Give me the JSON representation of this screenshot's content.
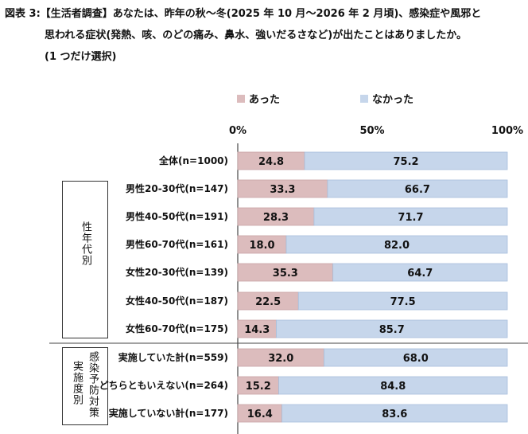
{
  "title": {
    "line1": "図表 3:【生活者調査】あなたは、昨年の秋～冬(2025 年 10 月～2026 年 2 月頃)、感染症や風邪と",
    "line2": "思われる症状(発熱、咳、のどの痛み、鼻水、強いだるさなど)が出たことはありましたか。",
    "line3": "(1 つだけ選択)"
  },
  "legend": [
    {
      "label": "あった",
      "color": "#dcbcbd"
    },
    {
      "label": "なかった",
      "color": "#c6d6eb"
    }
  ],
  "groups": [
    {
      "label": "性年代別"
    },
    {
      "label_col1": "感染予防対策",
      "label_col2": "実施度別"
    }
  ],
  "chart_data": {
    "type": "bar",
    "orientation": "horizontal",
    "stacked": true,
    "xlim": [
      0,
      100
    ],
    "xticks": [
      "0%",
      "50%",
      "100%"
    ],
    "categories": [
      "全体(n=1000)",
      "男性20-30代(n=147)",
      "男性40-50代(n=191)",
      "男性60-70代(n=161)",
      "女性20-30代(n=139)",
      "女性40-50代(n=187)",
      "女性60-70代(n=175)",
      "実施していた計(n=559)",
      "どちらともいえない(n=264)",
      "実施していない計(n=177)"
    ],
    "series": [
      {
        "name": "あった",
        "color": "#dcbcbd",
        "values": [
          24.8,
          33.3,
          28.3,
          18.0,
          35.3,
          22.5,
          14.3,
          32.0,
          15.2,
          16.4
        ],
        "labels": [
          "24.8",
          "33.3",
          "28.3",
          "18.0",
          "35.3",
          "22.5",
          "14.3",
          "32.0",
          "15.2",
          "16.4"
        ]
      },
      {
        "name": "なかった",
        "color": "#c6d6eb",
        "values": [
          75.2,
          66.7,
          71.7,
          82.0,
          64.7,
          77.5,
          85.7,
          68.0,
          84.8,
          83.6
        ],
        "labels": [
          "75.2",
          "66.7",
          "71.7",
          "82.0",
          "64.7",
          "77.5",
          "85.7",
          "68.0",
          "84.8",
          "83.6"
        ]
      }
    ],
    "legend_position": "top",
    "grid": false
  }
}
